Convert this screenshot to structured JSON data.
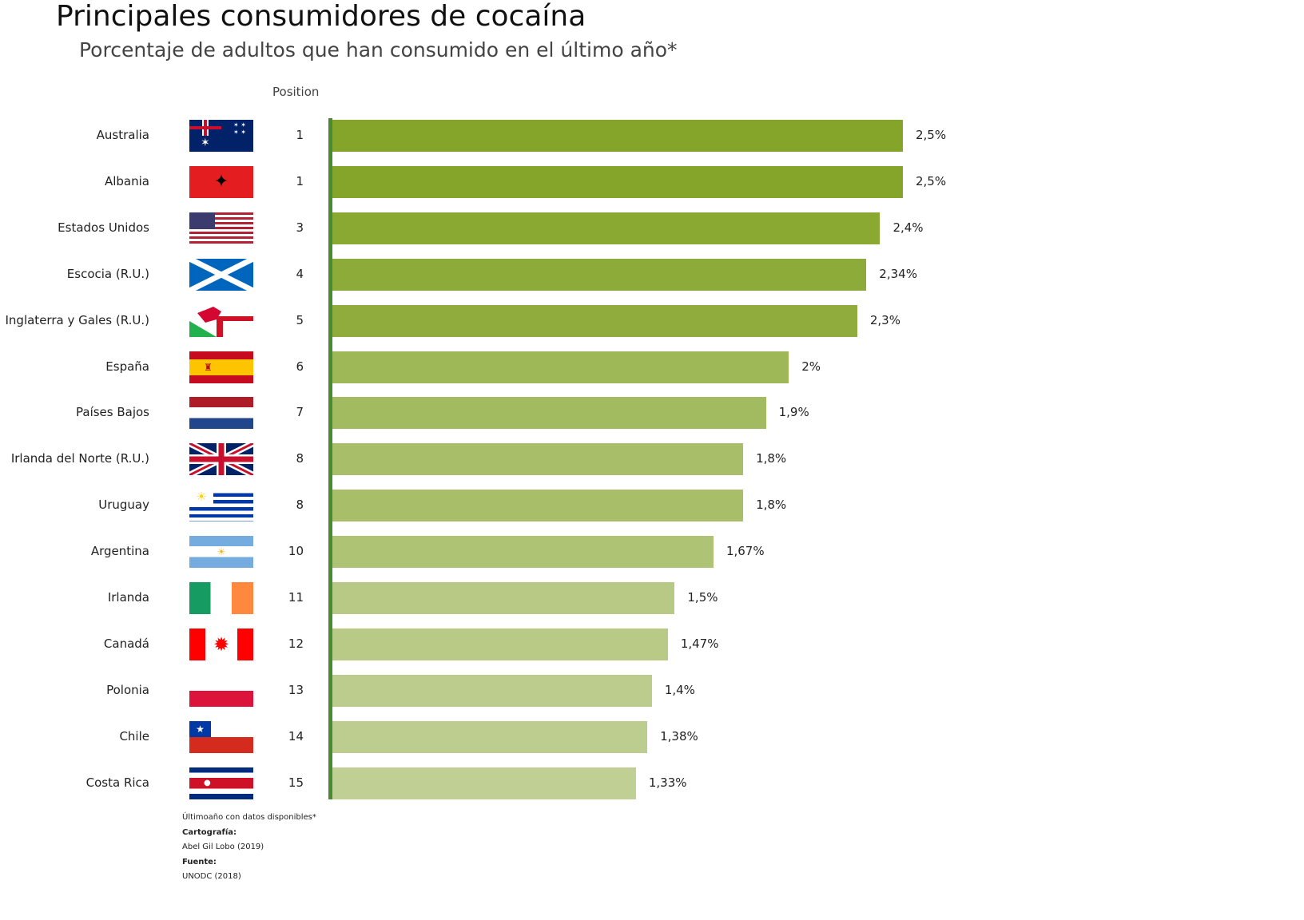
{
  "chart_data": {
    "type": "bar",
    "orientation": "horizontal",
    "title": "Principales consumidores de cocaína",
    "subtitle": "Porcentaje de adultos que han consumido en el último año*",
    "position_header": "Position",
    "categories": [
      "Australia",
      "Albania",
      "Estados Unidos",
      "Escocia (R.U.)",
      "Inglaterra y Gales (R.U.)",
      "España",
      "Países Bajos",
      "Irlanda del Norte (R.U.)",
      "Uruguay",
      "Argentina",
      "Irlanda",
      "Canadá",
      "Polonia",
      "Chile",
      "Costa Rica"
    ],
    "positions": [
      "1",
      "1",
      "3",
      "4",
      "5",
      "6",
      "7",
      "8",
      "8",
      "10",
      "11",
      "12",
      "13",
      "14",
      "15"
    ],
    "values": [
      2.5,
      2.5,
      2.4,
      2.34,
      2.3,
      2.0,
      1.9,
      1.8,
      1.8,
      1.67,
      1.5,
      1.47,
      1.4,
      1.38,
      1.33
    ],
    "labels": [
      "2,5%",
      "2,5%",
      "2,4%",
      "2,34%",
      "2,3%",
      "2%",
      "1,9%",
      "1,8%",
      "1,8%",
      "1,67%",
      "1,5%",
      "1,47%",
      "1,4%",
      "1,38%",
      "1,33%"
    ],
    "flags": [
      "australia",
      "albania",
      "usa",
      "scotland",
      "wales-england",
      "spain",
      "netherlands",
      "uk",
      "uruguay",
      "argentina",
      "ireland",
      "canada",
      "poland",
      "chile",
      "costa-rica"
    ],
    "xlim": [
      0,
      2.5
    ],
    "color_high": "#85a52a",
    "color_low": "#c0cf93",
    "axis_color": "#4a8a32"
  },
  "footer": {
    "note": "Últimoaño con datos disponibles*",
    "carto_label": "Cartografía:",
    "carto": "Abel Gil Lobo (2019)",
    "source_label": "Fuente:",
    "source": "UNODC (2018)"
  }
}
